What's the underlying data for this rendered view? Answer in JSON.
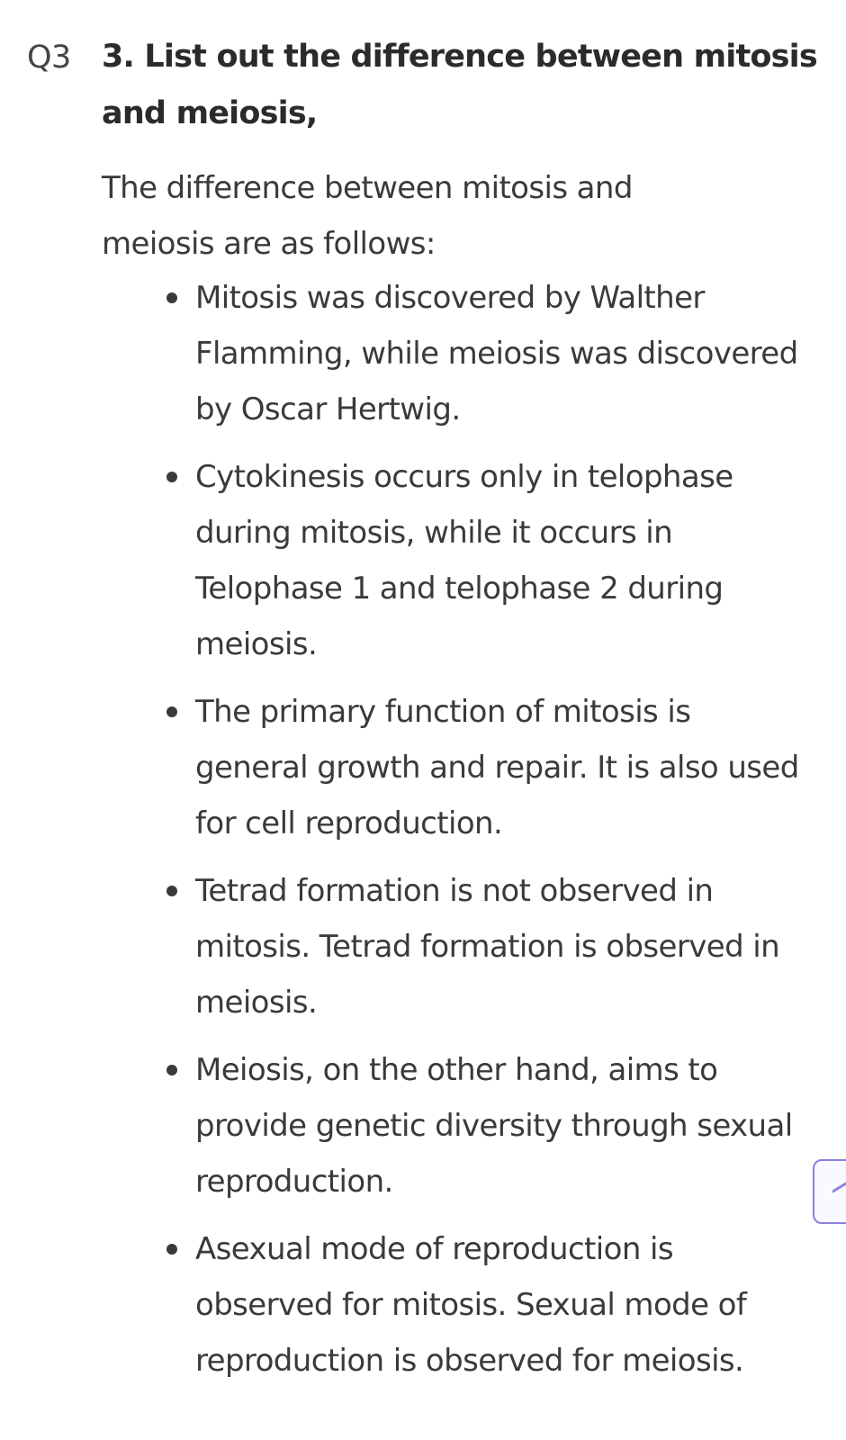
{
  "question": {
    "number": "Q3",
    "title": "3. List out the difference between mitosis and meiosis,"
  },
  "answer": {
    "intro": "The difference between mitosis and meiosis are as follows:",
    "points": [
      "Mitosis was discovered by Walther Flamming, while meiosis was discovered by Oscar Hertwig.",
      "Cytokinesis occurs only in telophase during mitosis, while it occurs in Telophase 1 and telophase 2 during meiosis.",
      "The primary function of mitosis is general growth and repair. It is also used for cell reproduction.",
      "Tetrad formation is not observed in mitosis. Tetrad formation is observed in meiosis.",
      "Meiosis, on the other hand, aims to provide genetic diversity through sexual reproduction.",
      "Asexual mode of reproduction is observed for mitosis. Sexual mode of reproduction is observed for meiosis."
    ]
  },
  "float_button": {
    "icon": "chevron-up-icon",
    "border_color": "#8e7fe0"
  }
}
